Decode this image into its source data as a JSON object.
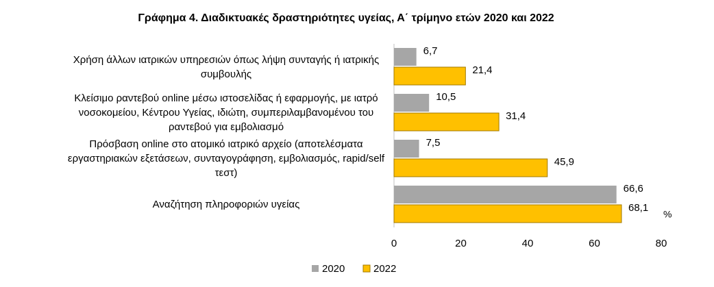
{
  "chart_data": {
    "type": "hbar",
    "title": "Γράφημα 4. Διαδικτυακές δραστηριότητες υγείας, Α΄ τρίμηνο ετών 2020 και 2022",
    "categories": [
      "Χρήση άλλων ιατρικών υπηρεσιών όπως λήψη συνταγής ή ιατρικής συμβουλής",
      "Κλείσιμο ραντεβού online μέσω ιστοσελίδας ή εφαρμογής, με ιατρό νοσοκομείου, Κέντρου Υγείας, ιδιώτη, συμπεριλαμβανομένου του ραντεβού για εμβολιασμό",
      "Πρόσβαση online στο ατομικό ιατρικό αρχείο (αποτελέσματα εργαστηριακών εξετάσεων, συνταγογράφηση, εμβολιασμός, rapid/self τεστ)",
      "Αναζήτηση πληροφοριών υγείας"
    ],
    "series": [
      {
        "name": "2020",
        "color": "#a6a6a6",
        "values": [
          6.7,
          10.5,
          7.5,
          66.6
        ],
        "value_labels": [
          "6,7",
          "10,5",
          "7,5",
          "66,6"
        ]
      },
      {
        "name": "2022",
        "color": "#ffc000",
        "values": [
          21.4,
          31.4,
          45.9,
          68.1
        ],
        "value_labels": [
          "21,4",
          "31,4",
          "45,9",
          "68,1"
        ]
      }
    ],
    "xlim": [
      0,
      80
    ],
    "xticks": [
      0,
      20,
      40,
      60,
      80
    ],
    "xlabel": "%",
    "grid": false
  }
}
